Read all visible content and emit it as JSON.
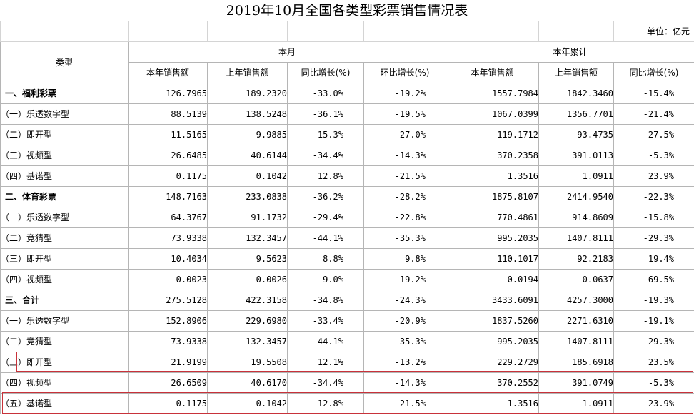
{
  "title": "2019年10月全国各类型彩票销售情况表",
  "unit": "单位：亿元",
  "header": {
    "type_col": "类型",
    "group_month": "本月",
    "group_ytd": "本年累计",
    "cols": [
      "本年销售额",
      "上年销售额",
      "同比增长(%)",
      "环比增长(%)",
      "本年销售额",
      "上年销售额",
      "同比增长(%)"
    ]
  },
  "rows": [
    {
      "label": "一、福利彩票",
      "cat": true,
      "vals": [
        "126.7965",
        "189.2320",
        "-33.0%",
        "-19.2%",
        "1557.7984",
        "1842.3460",
        "-15.4%"
      ]
    },
    {
      "label": "（一）乐透数字型",
      "cat": false,
      "vals": [
        "88.5139",
        "138.5248",
        "-36.1%",
        "-19.5%",
        "1067.0399",
        "1356.7701",
        "-21.4%"
      ]
    },
    {
      "label": "（二）即开型",
      "cat": false,
      "vals": [
        "11.5165",
        "9.9885",
        "15.3%",
        "-27.0%",
        "119.1712",
        "93.4735",
        "27.5%"
      ]
    },
    {
      "label": "（三）视频型",
      "cat": false,
      "vals": [
        "26.6485",
        "40.6144",
        "-34.4%",
        "-14.3%",
        "370.2358",
        "391.0113",
        "-5.3%"
      ]
    },
    {
      "label": "（四）基诺型",
      "cat": false,
      "vals": [
        "0.1175",
        "0.1042",
        "12.8%",
        "-21.5%",
        "1.3516",
        "1.0911",
        "23.9%"
      ]
    },
    {
      "label": "二、体育彩票",
      "cat": true,
      "vals": [
        "148.7163",
        "233.0838",
        "-36.2%",
        "-28.2%",
        "1875.8107",
        "2414.9540",
        "-22.3%"
      ]
    },
    {
      "label": "（一）乐透数字型",
      "cat": false,
      "vals": [
        "64.3767",
        "91.1732",
        "-29.4%",
        "-22.8%",
        "770.4861",
        "914.8609",
        "-15.8%"
      ]
    },
    {
      "label": "（二）竞猜型",
      "cat": false,
      "vals": [
        "73.9338",
        "132.3457",
        "-44.1%",
        "-35.3%",
        "995.2035",
        "1407.8111",
        "-29.3%"
      ]
    },
    {
      "label": "（三）即开型",
      "cat": false,
      "vals": [
        "10.4034",
        "9.5623",
        "8.8%",
        "9.8%",
        "110.1017",
        "92.2183",
        "19.4%"
      ]
    },
    {
      "label": "（四）视频型",
      "cat": false,
      "vals": [
        "0.0023",
        "0.0026",
        "-9.0%",
        "19.2%",
        "0.0194",
        "0.0637",
        "-69.5%"
      ]
    },
    {
      "label": "三、合计",
      "cat": true,
      "vals": [
        "275.5128",
        "422.3158",
        "-34.8%",
        "-24.3%",
        "3433.6091",
        "4257.3000",
        "-19.3%"
      ]
    },
    {
      "label": "（一）乐透数字型",
      "cat": false,
      "vals": [
        "152.8906",
        "229.6980",
        "-33.4%",
        "-20.9%",
        "1837.5260",
        "2271.6310",
        "-19.1%"
      ]
    },
    {
      "label": "（二）竞猜型",
      "cat": false,
      "vals": [
        "73.9338",
        "132.3457",
        "-44.1%",
        "-35.3%",
        "995.2035",
        "1407.8111",
        "-29.3%"
      ]
    },
    {
      "label": "（三）即开型",
      "cat": false,
      "vals": [
        "21.9199",
        "19.5508",
        "12.1%",
        "-13.2%",
        "229.2729",
        "185.6918",
        "23.5%"
      ]
    },
    {
      "label": "（四）视频型",
      "cat": false,
      "vals": [
        "26.6509",
        "40.6170",
        "-34.4%",
        "-14.3%",
        "370.2552",
        "391.0749",
        "-5.3%"
      ]
    },
    {
      "label": "（五）基诺型",
      "cat": false,
      "vals": [
        "0.1175",
        "0.1042",
        "12.8%",
        "-21.5%",
        "1.3516",
        "1.0911",
        "23.9%"
      ]
    }
  ],
  "highlight_color": "#c8323a"
}
